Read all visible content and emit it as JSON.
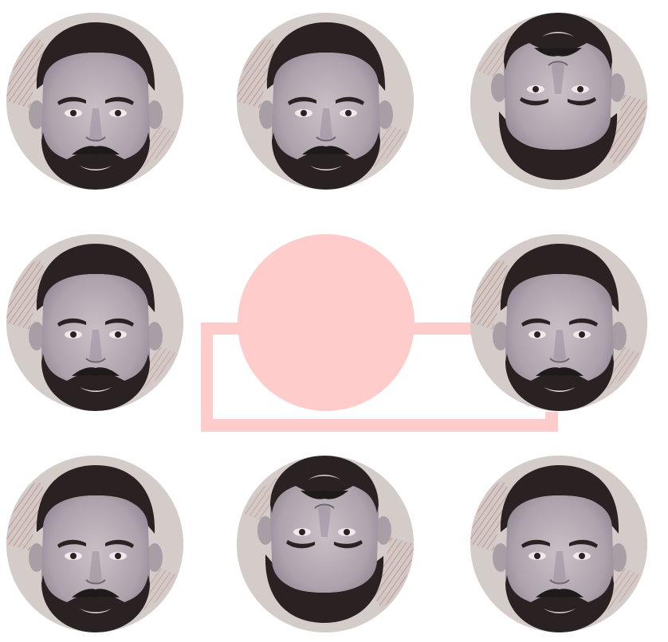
{
  "colors": {
    "background": "#ffffff",
    "pink": "#ffcccc",
    "skin": "#bdb4b8",
    "skin_shadow": "#9d93a0",
    "hair": "#2a2222",
    "tile_bg": "#cfc6c4",
    "engraving": "#a34c3a"
  },
  "grid": {
    "rows": 3,
    "cols": 3,
    "tiles": [
      {
        "id": "r1c1",
        "orientation": "upright",
        "present": true
      },
      {
        "id": "r1c2",
        "orientation": "upright",
        "present": true
      },
      {
        "id": "r1c3",
        "orientation": "upside-down",
        "present": true
      },
      {
        "id": "r2c1",
        "orientation": "upright",
        "present": true
      },
      {
        "id": "r2c2",
        "orientation": "missing",
        "present": false
      },
      {
        "id": "r2c3",
        "orientation": "upright",
        "present": true
      },
      {
        "id": "r3c1",
        "orientation": "upright",
        "present": true
      },
      {
        "id": "r3c2",
        "orientation": "upside-down",
        "present": true
      },
      {
        "id": "r3c3",
        "orientation": "upright",
        "present": true
      }
    ]
  },
  "placeholder": {
    "shape": "pink-circle-with-bracket"
  }
}
